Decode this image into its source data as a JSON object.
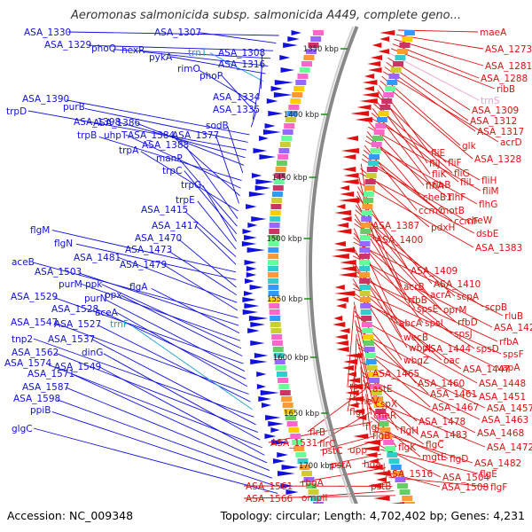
{
  "title": "Aeromonas salmonicida subsp. salmonicida A449, complete geno...",
  "footer": {
    "accession": "Accession: NC_009348",
    "stats": "Topology: circular; Length: 4,702,402 bp; Genes: 4,231"
  },
  "colors": {
    "forward_strand": "#1010e0",
    "reverse_strand": "#e01010",
    "trna": "#20a0d0",
    "rrna": "#f0a0d0",
    "backbone": "#888888",
    "tick": "#1a8a1a"
  },
  "scale_ticks": [
    "1350 kbp",
    "1400 kbp",
    "1450 kbp",
    "1500 kbp",
    "1550 kbp",
    "1600 kbp",
    "1650 kbp",
    "1700 kbp"
  ],
  "left_labels": [
    {
      "text": "ASA_1330",
      "kind": "gene"
    },
    {
      "text": "ASA_1307",
      "kind": "gene"
    },
    {
      "text": "ASA_1329",
      "kind": "gene"
    },
    {
      "text": "phoQ",
      "kind": "gene"
    },
    {
      "text": "hexR",
      "kind": "gene"
    },
    {
      "text": "pykA",
      "kind": "gene"
    },
    {
      "text": "trnT",
      "kind": "trna"
    },
    {
      "text": "ASA_1308",
      "kind": "gene"
    },
    {
      "text": "ASA_1316",
      "kind": "gene"
    },
    {
      "text": "rimO",
      "kind": "gene"
    },
    {
      "text": "phoP",
      "kind": "gene"
    },
    {
      "text": "ASA_1334",
      "kind": "gene"
    },
    {
      "text": "ASA_1335",
      "kind": "gene"
    },
    {
      "text": "ASA_1390",
      "kind": "gene"
    },
    {
      "text": "purB",
      "kind": "gene"
    },
    {
      "text": "trpD",
      "kind": "gene"
    },
    {
      "text": "ASA_1398",
      "kind": "gene"
    },
    {
      "text": "ASA_1386",
      "kind": "gene"
    },
    {
      "text": "sodB",
      "kind": "gene"
    },
    {
      "text": "trpB",
      "kind": "gene"
    },
    {
      "text": "uhpT",
      "kind": "gene"
    },
    {
      "text": "ASA_1384",
      "kind": "gene"
    },
    {
      "text": "ASA_1377",
      "kind": "gene"
    },
    {
      "text": "trpA",
      "kind": "gene"
    },
    {
      "text": "ASA_1388",
      "kind": "gene"
    },
    {
      "text": "manP",
      "kind": "gene"
    },
    {
      "text": "trpC",
      "kind": "gene"
    },
    {
      "text": "trpG",
      "kind": "gene"
    },
    {
      "text": "trpE",
      "kind": "gene"
    },
    {
      "text": "ASA_1415",
      "kind": "gene"
    },
    {
      "text": "ASA_1417",
      "kind": "gene"
    },
    {
      "text": "flgM",
      "kind": "gene"
    },
    {
      "text": "flgN",
      "kind": "gene"
    },
    {
      "text": "ASA_1470",
      "kind": "gene"
    },
    {
      "text": "ASA_1473",
      "kind": "gene"
    },
    {
      "text": "ASA_1481",
      "kind": "gene"
    },
    {
      "text": "ASA_1479",
      "kind": "gene"
    },
    {
      "text": "aceB",
      "kind": "gene"
    },
    {
      "text": "ASA_1503",
      "kind": "gene"
    },
    {
      "text": "flgA",
      "kind": "gene"
    },
    {
      "text": "purM",
      "kind": "gene"
    },
    {
      "text": "ppk",
      "kind": "gene"
    },
    {
      "text": "ppx",
      "kind": "gene"
    },
    {
      "text": "ASA_1529",
      "kind": "gene"
    },
    {
      "text": "purN",
      "kind": "gene"
    },
    {
      "text": "ASA_1528",
      "kind": "gene"
    },
    {
      "text": "aceA",
      "kind": "gene"
    },
    {
      "text": "ASA_1547",
      "kind": "gene"
    },
    {
      "text": "ASA_1527",
      "kind": "gene"
    },
    {
      "text": "trnF",
      "kind": "trna"
    },
    {
      "text": "tnp2",
      "kind": "gene"
    },
    {
      "text": "ASA_1537",
      "kind": "gene"
    },
    {
      "text": "ASA_1562",
      "kind": "gene"
    },
    {
      "text": "dinG",
      "kind": "gene"
    },
    {
      "text": "ASA_1574",
      "kind": "gene"
    },
    {
      "text": "ASA_1549",
      "kind": "gene"
    },
    {
      "text": "ASA_1571",
      "kind": "gene"
    },
    {
      "text": "ASA_1587",
      "kind": "gene"
    },
    {
      "text": "ASA_1598",
      "kind": "gene"
    },
    {
      "text": "ppiB",
      "kind": "gene"
    },
    {
      "text": "glgC",
      "kind": "gene"
    }
  ],
  "right_labels": [
    {
      "text": "maeA",
      "kind": "gene"
    },
    {
      "text": "ASA_1273",
      "kind": "gene"
    },
    {
      "text": "ASA_1281",
      "kind": "gene"
    },
    {
      "text": "ASA_1288",
      "kind": "gene"
    },
    {
      "text": "ribB",
      "kind": "gene"
    },
    {
      "text": "trnS",
      "kind": "rrna"
    },
    {
      "text": "ASA_1309",
      "kind": "gene"
    },
    {
      "text": "ASA_1312",
      "kind": "gene"
    },
    {
      "text": "ASA_1317",
      "kind": "gene"
    },
    {
      "text": "acrD",
      "kind": "gene"
    },
    {
      "text": "glk",
      "kind": "gene"
    },
    {
      "text": "ASA_1328",
      "kind": "gene"
    },
    {
      "text": "fliE",
      "kind": "gene"
    },
    {
      "text": "fliJ",
      "kind": "gene"
    },
    {
      "text": "fliF",
      "kind": "gene"
    },
    {
      "text": "fliK",
      "kind": "gene"
    },
    {
      "text": "fliG",
      "kind": "gene"
    },
    {
      "text": "flhB",
      "kind": "gene"
    },
    {
      "text": "fliL",
      "kind": "gene"
    },
    {
      "text": "fliH",
      "kind": "gene"
    },
    {
      "text": "flhA",
      "kind": "gene"
    },
    {
      "text": "fliM",
      "kind": "gene"
    },
    {
      "text": "cheB1",
      "kind": "gene"
    },
    {
      "text": "flhF",
      "kind": "gene"
    },
    {
      "text": "flhG",
      "kind": "gene"
    },
    {
      "text": "ccmC",
      "kind": "gene"
    },
    {
      "text": "motB",
      "kind": "gene"
    },
    {
      "text": "ccmF",
      "kind": "gene"
    },
    {
      "text": "cheW",
      "kind": "gene"
    },
    {
      "text": "ASA_1387",
      "kind": "gene"
    },
    {
      "text": "pdxH",
      "kind": "gene"
    },
    {
      "text": "dsbE",
      "kind": "gene"
    },
    {
      "text": "ASA_1400",
      "kind": "gene"
    },
    {
      "text": "ASA_1383",
      "kind": "gene"
    },
    {
      "text": "ASA_1409",
      "kind": "gene"
    },
    {
      "text": "acrB",
      "kind": "gene"
    },
    {
      "text": "ASA_1410",
      "kind": "gene"
    },
    {
      "text": "rfbB",
      "kind": "gene"
    },
    {
      "text": "acrA",
      "kind": "gene"
    },
    {
      "text": "scpA",
      "kind": "gene"
    },
    {
      "text": "spsE",
      "kind": "gene"
    },
    {
      "text": "oprM",
      "kind": "gene"
    },
    {
      "text": "scpB",
      "kind": "gene"
    },
    {
      "text": "abcA",
      "kind": "gene"
    },
    {
      "text": "spsI",
      "kind": "gene"
    },
    {
      "text": "rfbD",
      "kind": "gene"
    },
    {
      "text": "rluB",
      "kind": "gene"
    },
    {
      "text": "wecB",
      "kind": "gene"
    },
    {
      "text": "spsJ",
      "kind": "gene"
    },
    {
      "text": "ASA_1421",
      "kind": "gene"
    },
    {
      "text": "wbpL",
      "kind": "gene"
    },
    {
      "text": "ASA_1444",
      "kind": "gene"
    },
    {
      "text": "spsD",
      "kind": "gene"
    },
    {
      "text": "rfbA",
      "kind": "gene"
    },
    {
      "text": "wbgZ",
      "kind": "gene"
    },
    {
      "text": "oac",
      "kind": "gene"
    },
    {
      "text": "spsF",
      "kind": "gene"
    },
    {
      "text": "ASA_1447",
      "kind": "gene"
    },
    {
      "text": "vapA",
      "kind": "gene"
    },
    {
      "text": "ASA_1465",
      "kind": "gene"
    },
    {
      "text": "rsuA",
      "kind": "gene"
    },
    {
      "text": "ASA_1460",
      "kind": "gene"
    },
    {
      "text": "ASA_1448",
      "kind": "gene"
    },
    {
      "text": "astE",
      "kind": "gene"
    },
    {
      "text": "ASA_1461",
      "kind": "gene"
    },
    {
      "text": "ASA_1451",
      "kind": "gene"
    },
    {
      "text": "cheV",
      "kind": "gene"
    },
    {
      "text": "cspX",
      "kind": "gene"
    },
    {
      "text": "ASA_1467",
      "kind": "gene"
    },
    {
      "text": "ASA_1457",
      "kind": "gene"
    },
    {
      "text": "flgI",
      "kind": "gene"
    },
    {
      "text": "cheR",
      "kind": "gene"
    },
    {
      "text": "ASA_1463",
      "kind": "gene"
    },
    {
      "text": "flgJ",
      "kind": "gene"
    },
    {
      "text": "ASA_1478",
      "kind": "gene"
    },
    {
      "text": "ASA_1468",
      "kind": "gene"
    },
    {
      "text": "flgH",
      "kind": "gene"
    },
    {
      "text": "ASA_1483",
      "kind": "gene"
    },
    {
      "text": "flrB",
      "kind": "gene"
    },
    {
      "text": "flgB",
      "kind": "gene"
    },
    {
      "text": "ASA_1472",
      "kind": "gene"
    },
    {
      "text": "flgK",
      "kind": "gene"
    },
    {
      "text": "flgC",
      "kind": "gene"
    },
    {
      "text": "flrC",
      "kind": "gene"
    },
    {
      "text": "mgtE",
      "kind": "gene"
    },
    {
      "text": "ASA_1531",
      "kind": "gene"
    },
    {
      "text": "flgD",
      "kind": "gene"
    },
    {
      "text": "ASA_1482",
      "kind": "gene"
    },
    {
      "text": "pstC",
      "kind": "gene"
    },
    {
      "text": "upp",
      "kind": "gene"
    },
    {
      "text": "ASA_1504",
      "kind": "gene"
    },
    {
      "text": "flgE",
      "kind": "gene"
    },
    {
      "text": "pstA",
      "kind": "gene"
    },
    {
      "text": "hda",
      "kind": "gene"
    },
    {
      "text": "ASA_1516",
      "kind": "gene"
    },
    {
      "text": "rbgA",
      "kind": "gene"
    },
    {
      "text": "ASA_1508",
      "kind": "gene"
    },
    {
      "text": "flgF",
      "kind": "gene"
    },
    {
      "text": "pstB",
      "kind": "gene"
    },
    {
      "text": "ASA_1561",
      "kind": "gene"
    },
    {
      "text": "ompII",
      "kind": "gene"
    },
    {
      "text": "ASA_1566",
      "kind": "gene"
    }
  ]
}
